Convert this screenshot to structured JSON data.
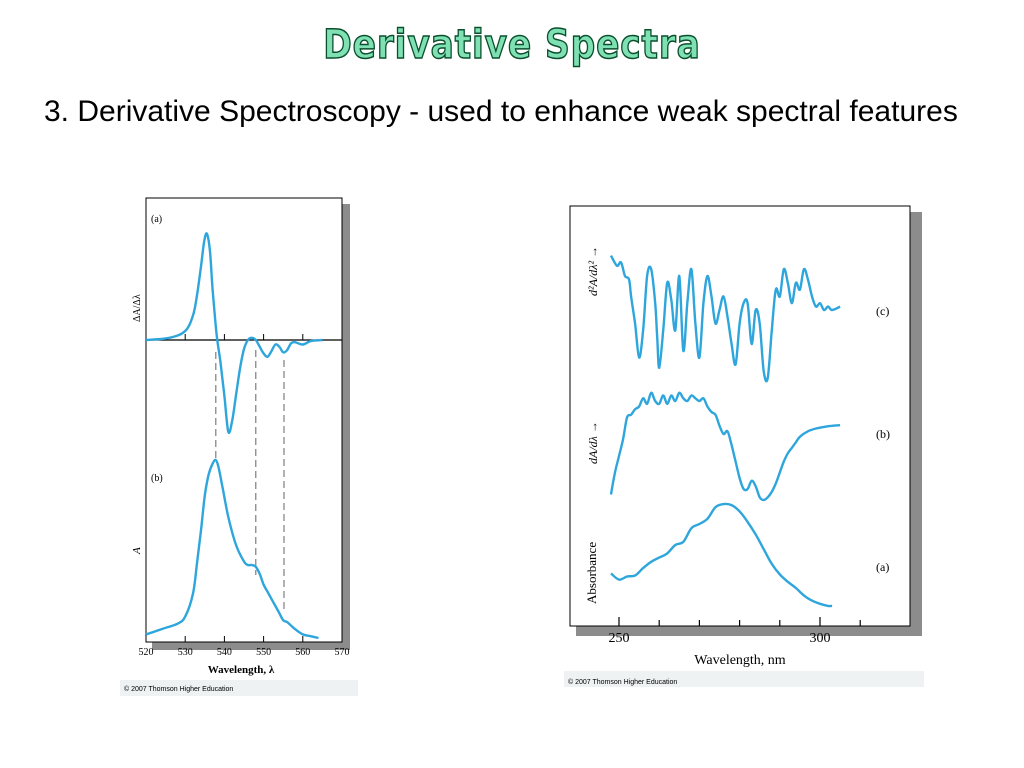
{
  "title": "Derivative Spectra",
  "bullet": "3. Derivative Spectroscopy - used to enhance weak spectral features",
  "chart_data": [
    {
      "type": "line",
      "xlabel": "Wavelength, λ",
      "xlim": [
        520,
        570
      ],
      "xticks": [
        "520",
        "530",
        "540",
        "550",
        "560",
        "570"
      ],
      "copyright": "© 2007 Thomson Higher Education",
      "panels": [
        {
          "panel_label": "(a)",
          "ylabel": "ΔA/Δλ",
          "x": [
            520,
            526,
            530,
            532,
            533,
            534,
            534.8,
            535.5,
            536.3,
            537,
            538,
            539,
            540,
            541,
            542,
            543,
            544,
            545,
            546,
            547,
            548,
            549,
            550,
            551,
            552,
            553,
            554,
            555,
            556,
            557,
            558,
            560,
            562,
            565
          ],
          "y": [
            0,
            0.02,
            0.08,
            0.22,
            0.4,
            0.65,
            0.87,
            0.95,
            0.8,
            0.45,
            0.05,
            -0.2,
            -0.5,
            -0.82,
            -0.72,
            -0.48,
            -0.25,
            -0.08,
            0,
            0.02,
            0,
            -0.06,
            -0.12,
            -0.15,
            -0.1,
            -0.04,
            -0.06,
            -0.11,
            -0.09,
            -0.03,
            -0.02,
            -0.04,
            -0.01,
            0
          ]
        },
        {
          "panel_label": "(b)",
          "ylabel": "A",
          "x": [
            520,
            524,
            528,
            530,
            532,
            533,
            534,
            535,
            536,
            537,
            537.8,
            538.5,
            539.5,
            541,
            543,
            545,
            546,
            547,
            548,
            549,
            550,
            551,
            552,
            553,
            554,
            555,
            556,
            557,
            558,
            560,
            562,
            564
          ],
          "y": [
            0.02,
            0.05,
            0.08,
            0.12,
            0.25,
            0.42,
            0.6,
            0.8,
            0.92,
            0.98,
            1.0,
            0.96,
            0.85,
            0.68,
            0.52,
            0.43,
            0.41,
            0.41,
            0.4,
            0.36,
            0.3,
            0.26,
            0.22,
            0.18,
            0.14,
            0.1,
            0.09,
            0.07,
            0.05,
            0.02,
            0.01,
            0
          ]
        }
      ]
    },
    {
      "type": "line",
      "xlabel": "Wavelength, nm",
      "xlim": [
        248,
        315
      ],
      "xticks": [
        "250",
        "300"
      ],
      "copyright": "© 2007 Thomson Higher Education",
      "series": [
        {
          "name": "(c)",
          "ylabel": "d²A/dλ² →",
          "x": [
            248,
            249.5,
            250.5,
            251.5,
            252.5,
            253,
            254,
            255,
            256,
            257,
            258,
            259,
            259.5,
            260,
            261,
            262,
            263,
            264,
            265,
            266,
            267,
            268,
            269,
            270,
            271,
            272,
            273,
            274,
            275,
            276,
            277,
            278,
            279,
            280,
            281,
            282,
            283,
            284,
            285,
            286,
            287,
            288,
            289,
            290,
            291,
            292,
            293,
            294,
            295,
            296,
            297,
            298,
            299,
            300,
            301,
            302,
            303,
            305
          ],
          "y": [
            0.8,
            0.65,
            0.7,
            0.5,
            0.45,
            0.2,
            -0.2,
            -0.7,
            -0.3,
            0.5,
            0.6,
            0.1,
            -0.4,
            -0.85,
            -0.3,
            0.4,
            0.15,
            -0.3,
            0.5,
            -0.6,
            0.1,
            0.6,
            -0.2,
            -0.7,
            0.1,
            0.5,
            0.2,
            -0.2,
            0.0,
            0.2,
            -0.1,
            -0.5,
            -0.8,
            -0.2,
            0.1,
            0.1,
            -0.5,
            0.0,
            -0.2,
            -0.9,
            -1.0,
            -0.3,
            0.3,
            0.2,
            0.6,
            0.4,
            0.1,
            0.4,
            0.3,
            0.6,
            0.45,
            0.2,
            0.05,
            0.1,
            0.0,
            0.05,
            0.0,
            0.05
          ]
        },
        {
          "name": "(b)",
          "ylabel": "dA/dλ →",
          "x": [
            248,
            249,
            250,
            251,
            252,
            253,
            254,
            255,
            256,
            257,
            258,
            259,
            260,
            261,
            262,
            263,
            264,
            265,
            266,
            267,
            268,
            269,
            270,
            271,
            272,
            273,
            274,
            275,
            276,
            277,
            278,
            279,
            280,
            281,
            282,
            283,
            284,
            285,
            286,
            287,
            288,
            289,
            290,
            291,
            292,
            293,
            294,
            295,
            297,
            299,
            301,
            303,
            305
          ],
          "y": [
            -0.9,
            -0.5,
            -0.2,
            0.1,
            0.5,
            0.55,
            0.65,
            0.7,
            0.85,
            0.75,
            0.95,
            0.8,
            0.75,
            0.9,
            0.75,
            0.9,
            0.8,
            0.95,
            0.85,
            0.8,
            0.9,
            0.85,
            0.8,
            0.85,
            0.7,
            0.6,
            0.55,
            0.35,
            0.2,
            0.25,
            0.0,
            -0.3,
            -0.6,
            -0.8,
            -0.8,
            -0.65,
            -0.75,
            -0.95,
            -1.0,
            -0.95,
            -0.85,
            -0.7,
            -0.5,
            -0.3,
            -0.15,
            -0.05,
            0.05,
            0.15,
            0.25,
            0.3,
            0.33,
            0.35,
            0.36
          ]
        },
        {
          "name": "(a)",
          "ylabel": "Absorbance",
          "x": [
            248,
            250,
            252,
            254,
            256,
            258,
            260,
            262,
            264,
            266,
            268,
            270,
            272,
            274,
            276,
            278,
            280,
            282,
            284,
            286,
            288,
            290,
            292,
            294,
            296,
            298,
            300,
            302,
            303
          ],
          "y": [
            0.33,
            0.27,
            0.3,
            0.31,
            0.38,
            0.44,
            0.48,
            0.52,
            0.6,
            0.63,
            0.76,
            0.8,
            0.85,
            0.96,
            0.99,
            0.98,
            0.92,
            0.82,
            0.7,
            0.56,
            0.42,
            0.32,
            0.25,
            0.19,
            0.12,
            0.07,
            0.04,
            0.02,
            0.02
          ]
        }
      ]
    }
  ],
  "colors": {
    "curve": "#2ea6dc",
    "axis": "#000000",
    "dash": "#888888",
    "shadow": "#8c8c8c",
    "copyright_bg": "#eef2f2",
    "title_fill": "#7fe0b4"
  }
}
